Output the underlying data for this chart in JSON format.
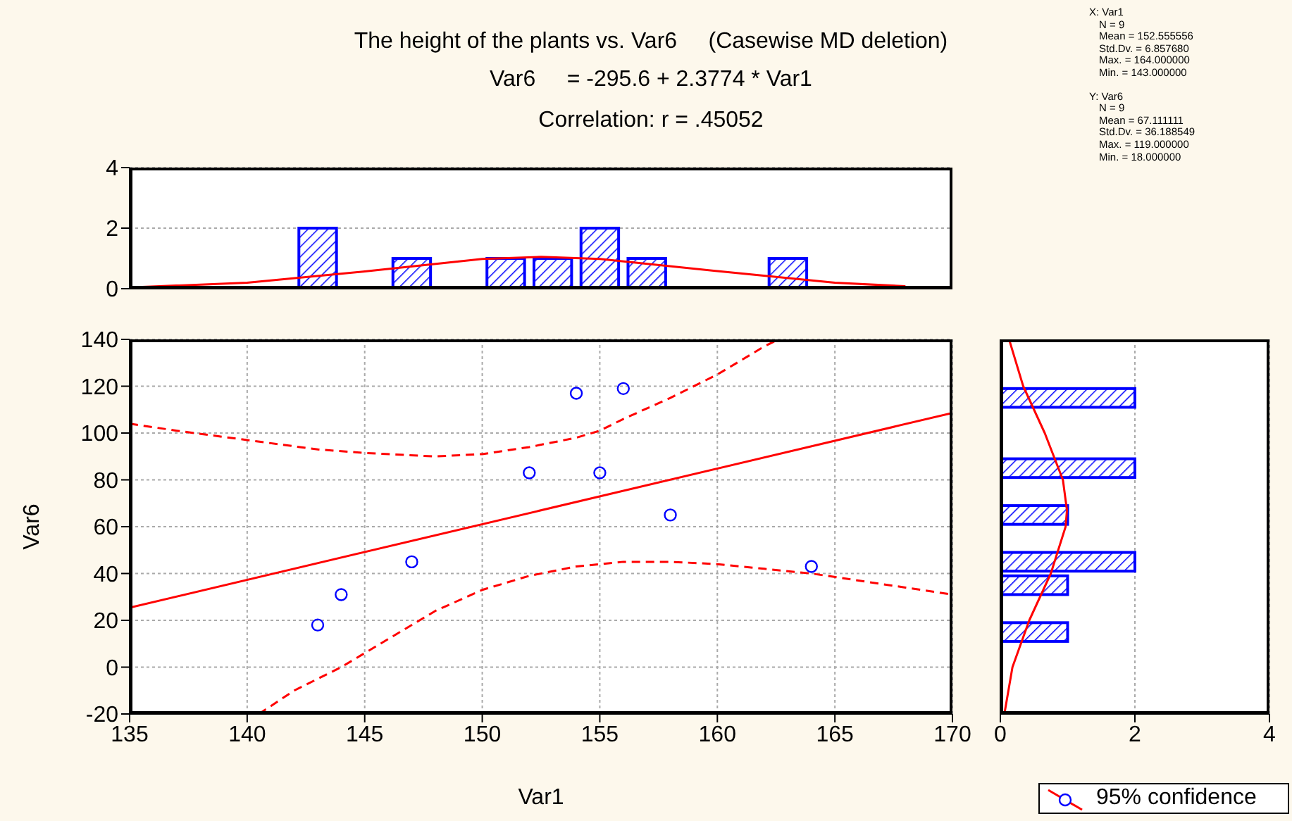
{
  "chart_data": [
    {
      "type": "histogram",
      "title": "The height of the plants vs. Var6     (Casewise MD deletion)",
      "subtitle": "Var6     = -295.6 + 2.3774 * Var1",
      "annotations": [
        "Correlation: r = .45052",
        "X: Var1",
        "N = 9",
        "Mean = 152.555556",
        "Std.Dv. = 6.857680",
        "Max. = 164.000000",
        "Min. = 143.000000",
        "Y: Var6",
        "N = 9",
        "Mean = 67.111111",
        "Std.Dv. = 36.188549",
        "Max. = 119.000000",
        "Min. = 18.000000"
      ],
      "series": [
        {
          "type": "histogram",
          "color": "#0000ff",
          "bins": [
            142,
            144,
            146,
            148,
            150,
            152,
            154,
            156,
            158,
            160,
            162,
            164
          ],
          "values": [
            2,
            0,
            1,
            0,
            1,
            1,
            2,
            1,
            0,
            0,
            1
          ]
        },
        {
          "type": "line",
          "color": "#ff0000",
          "x": [
            135,
            140,
            145,
            150,
            152.5,
            155,
            160,
            165,
            168
          ],
          "values": [
            0.04,
            0.2,
            0.57,
            0.98,
            1.05,
            0.98,
            0.58,
            0.2,
            0.08
          ]
        }
      ],
      "xlim": [
        135,
        170
      ],
      "xticks": [
        135,
        140,
        145,
        150,
        155,
        160,
        165,
        170
      ],
      "ylim": [
        0,
        4
      ],
      "yticks": [
        0,
        2,
        4
      ],
      "grid": "y",
      "tick_labels": "y"
    },
    {
      "type": "scatter",
      "xlabel": "Var1",
      "ylabel": "Var6",
      "series": [
        {
          "type": "scatter",
          "name": "95% confidence",
          "color": "#0000ff",
          "marker": "circle",
          "x": [
            143,
            144,
            147,
            152,
            154,
            155,
            156,
            158,
            164
          ],
          "values": [
            18,
            31,
            45,
            83,
            117,
            83,
            119,
            65,
            43
          ]
        },
        {
          "type": "line",
          "color": "#ff0000",
          "line_style": "solid",
          "x": [
            135,
            170
          ],
          "values": [
            25.4,
            108.6
          ]
        },
        {
          "type": "line",
          "color": "#ff0000",
          "line_style": "dashed",
          "x": [
            135,
            137,
            140,
            143,
            145,
            148,
            150,
            152,
            154,
            155,
            156,
            158,
            160,
            162,
            162.6
          ],
          "values": [
            104,
            101,
            97,
            93,
            91.5,
            90,
            91,
            94,
            98,
            101,
            106,
            115,
            125,
            137,
            140
          ]
        },
        {
          "type": "line",
          "color": "#ff0000",
          "line_style": "dashed",
          "x": [
            140.5,
            142,
            144,
            146,
            148,
            150,
            152,
            154,
            156,
            158,
            160,
            162,
            164,
            166,
            168,
            170
          ],
          "values": [
            -20,
            -10,
            0,
            12,
            24,
            33,
            39,
            43,
            45,
            45,
            44,
            42,
            40,
            37,
            34,
            31
          ]
        }
      ],
      "xlim": [
        135,
        170
      ],
      "xticks": [
        135,
        140,
        145,
        150,
        155,
        160,
        165,
        170
      ],
      "ylim": [
        -20,
        140
      ],
      "yticks": [
        -20,
        0,
        20,
        40,
        60,
        80,
        100,
        120,
        140
      ],
      "grid": true,
      "legend": "bottom right"
    },
    {
      "type": "histogram",
      "orientation": "horizontal",
      "series": [
        {
          "type": "histogram",
          "color": "#0000ff",
          "bins": [
            10,
            20,
            30,
            40,
            50,
            60,
            70,
            80,
            90,
            100,
            110,
            120
          ],
          "values": [
            1,
            0,
            1,
            2,
            0,
            1,
            0,
            2,
            0,
            0,
            2
          ]
        },
        {
          "type": "line",
          "color": "#ff0000",
          "x": [
            -20,
            0,
            20,
            40,
            60,
            67,
            80,
            100,
            120,
            140
          ],
          "values": [
            0.06,
            0.18,
            0.43,
            0.75,
            0.97,
            0.99,
            0.93,
            0.66,
            0.34,
            0.13
          ]
        }
      ],
      "xlim": [
        0,
        4
      ],
      "xticks": [
        0,
        2,
        4
      ],
      "ylim": [
        -20,
        140
      ],
      "yticks": [
        -20,
        0,
        20,
        40,
        60,
        80,
        100,
        120,
        140
      ],
      "grid": "x",
      "tick_labels": "x"
    }
  ]
}
